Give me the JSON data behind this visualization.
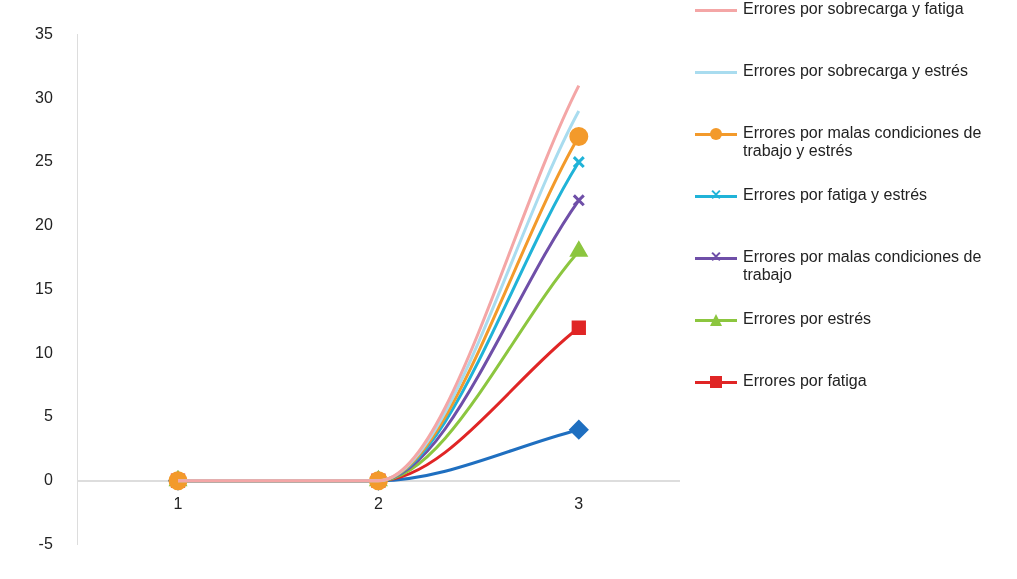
{
  "chart_data": {
    "type": "line",
    "categories": [
      "1",
      "2",
      "3"
    ],
    "ylim": [
      -5,
      35
    ],
    "yticks": [
      -5,
      0,
      5,
      10,
      15,
      20,
      25,
      30,
      35
    ],
    "grid": false,
    "legend": "right",
    "series": [
      {
        "name": "Errores por sobrecarga y fatiga",
        "color": "#f4a6a6",
        "values": [
          0,
          0,
          31
        ],
        "marker": "none"
      },
      {
        "name": "Errores por sobrecarga y estrés",
        "color": "#a9dcef",
        "values": [
          0,
          0,
          29
        ],
        "marker": "none"
      },
      {
        "name": "Errores por malas condiciones de trabajo y estrés",
        "color": "#f39a2b",
        "values": [
          0,
          0,
          27
        ],
        "marker": "circle"
      },
      {
        "name": "Errores por fatiga y estrés",
        "color": "#20b3d8",
        "values": [
          0,
          0,
          25
        ],
        "marker": "cross"
      },
      {
        "name": "Errores por malas condiciones de trabajo",
        "color": "#6f4fa8",
        "values": [
          0,
          0,
          22
        ],
        "marker": "cross"
      },
      {
        "name": "Errores por estrés",
        "color": "#8cc63f",
        "values": [
          0,
          0,
          18
        ],
        "marker": "triangle"
      },
      {
        "name": "Errores por fatiga",
        "color": "#e02525",
        "values": [
          0,
          0,
          12
        ],
        "marker": "square"
      },
      {
        "color": "#1f6fc0",
        "values": [
          0,
          0,
          4
        ],
        "marker": "diamond"
      }
    ]
  }
}
